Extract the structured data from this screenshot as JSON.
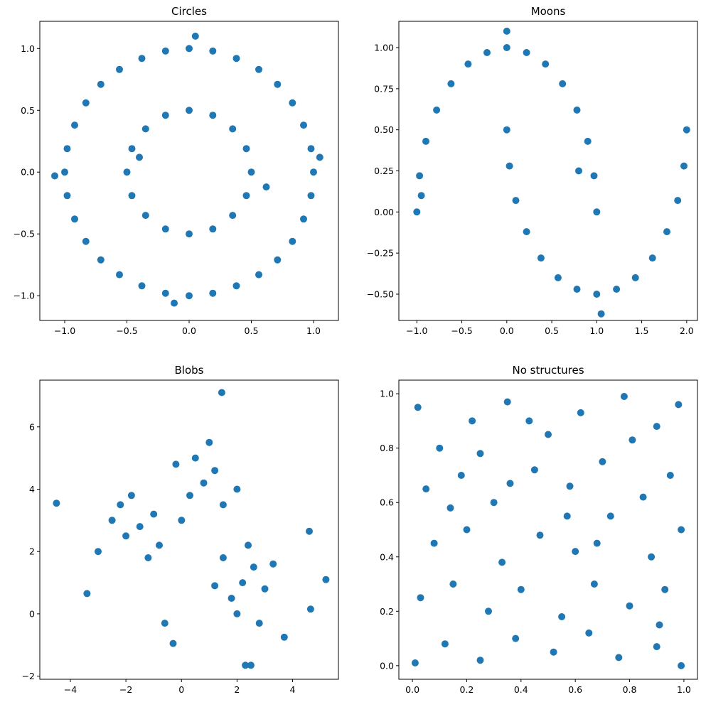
{
  "colors": {
    "marker": "#1f77b4",
    "background": "#ffffff",
    "frame": "#000000"
  },
  "chart_data": [
    {
      "type": "scatter",
      "title": "Circles",
      "xlabel": "",
      "ylabel": "",
      "xlim": [
        -1.2,
        1.2
      ],
      "ylim": [
        -1.2,
        1.22
      ],
      "xticks": [
        -1.0,
        -0.5,
        0.0,
        0.5,
        1.0
      ],
      "xticklabels": [
        "−1.0",
        "−0.5",
        "0.0",
        "0.5",
        "1.0"
      ],
      "yticks": [
        -1.0,
        -0.5,
        0.0,
        0.5,
        1.0
      ],
      "yticklabels": [
        "−1.0",
        "−0.5",
        "0.0",
        "0.5",
        "1.0"
      ],
      "grid": false,
      "points": [
        [
          1.0,
          0.0
        ],
        [
          0.98,
          0.19
        ],
        [
          0.92,
          0.38
        ],
        [
          0.83,
          0.56
        ],
        [
          0.71,
          0.71
        ],
        [
          0.56,
          0.83
        ],
        [
          0.38,
          0.92
        ],
        [
          0.19,
          0.98
        ],
        [
          0.0,
          1.0
        ],
        [
          -0.19,
          0.98
        ],
        [
          -0.38,
          0.92
        ],
        [
          -0.56,
          0.83
        ],
        [
          -0.71,
          0.71
        ],
        [
          -0.83,
          0.56
        ],
        [
          -0.92,
          0.38
        ],
        [
          -0.98,
          0.19
        ],
        [
          -1.0,
          0.0
        ],
        [
          -0.98,
          -0.19
        ],
        [
          -0.92,
          -0.38
        ],
        [
          -0.83,
          -0.56
        ],
        [
          -0.71,
          -0.71
        ],
        [
          -0.56,
          -0.83
        ],
        [
          -0.38,
          -0.92
        ],
        [
          -0.19,
          -0.98
        ],
        [
          0.0,
          -1.0
        ],
        [
          0.19,
          -0.98
        ],
        [
          0.38,
          -0.92
        ],
        [
          0.56,
          -0.83
        ],
        [
          0.71,
          -0.71
        ],
        [
          0.83,
          -0.56
        ],
        [
          0.92,
          -0.38
        ],
        [
          0.98,
          -0.19
        ],
        [
          0.5,
          0.0
        ],
        [
          0.46,
          0.19
        ],
        [
          0.35,
          0.35
        ],
        [
          0.19,
          0.46
        ],
        [
          0.0,
          0.5
        ],
        [
          -0.19,
          0.46
        ],
        [
          -0.35,
          0.35
        ],
        [
          -0.46,
          0.19
        ],
        [
          -0.5,
          0.0
        ],
        [
          -0.46,
          -0.19
        ],
        [
          -0.35,
          -0.35
        ],
        [
          -0.19,
          -0.46
        ],
        [
          0.0,
          -0.5
        ],
        [
          0.19,
          -0.46
        ],
        [
          0.35,
          -0.35
        ],
        [
          0.46,
          -0.19
        ],
        [
          1.05,
          0.12
        ],
        [
          -1.08,
          -0.03
        ],
        [
          0.05,
          1.1
        ],
        [
          -0.12,
          -1.06
        ],
        [
          0.62,
          -0.12
        ],
        [
          -0.4,
          0.12
        ]
      ]
    },
    {
      "type": "scatter",
      "title": "Moons",
      "xlabel": "",
      "ylabel": "",
      "xlim": [
        -1.2,
        2.12
      ],
      "ylim": [
        -0.66,
        1.16
      ],
      "xticks": [
        -1.0,
        -0.5,
        0.0,
        0.5,
        1.0,
        1.5,
        2.0
      ],
      "xticklabels": [
        "−1.0",
        "−0.5",
        "0.0",
        "0.5",
        "1.0",
        "1.5",
        "2.0"
      ],
      "yticks": [
        -0.5,
        -0.25,
        0.0,
        0.25,
        0.5,
        0.75,
        1.0
      ],
      "yticklabels": [
        "−0.50",
        "−0.25",
        "0.00",
        "0.25",
        "0.50",
        "0.75",
        "1.00"
      ],
      "grid": false,
      "points": [
        [
          -1.0,
          0.0
        ],
        [
          -0.97,
          0.22
        ],
        [
          -0.9,
          0.43
        ],
        [
          -0.78,
          0.62
        ],
        [
          -0.62,
          0.78
        ],
        [
          -0.43,
          0.9
        ],
        [
          -0.22,
          0.97
        ],
        [
          0.0,
          1.0
        ],
        [
          0.22,
          0.97
        ],
        [
          0.43,
          0.9
        ],
        [
          0.62,
          0.78
        ],
        [
          0.78,
          0.62
        ],
        [
          0.9,
          0.43
        ],
        [
          0.97,
          0.22
        ],
        [
          1.0,
          0.0
        ],
        [
          0.0,
          0.5
        ],
        [
          0.03,
          0.28
        ],
        [
          0.1,
          0.07
        ],
        [
          0.22,
          -0.12
        ],
        [
          0.38,
          -0.28
        ],
        [
          0.57,
          -0.4
        ],
        [
          0.78,
          -0.47
        ],
        [
          1.0,
          -0.5
        ],
        [
          1.22,
          -0.47
        ],
        [
          1.43,
          -0.4
        ],
        [
          1.62,
          -0.28
        ],
        [
          1.78,
          -0.12
        ],
        [
          1.9,
          0.07
        ],
        [
          1.97,
          0.28
        ],
        [
          2.0,
          0.5
        ],
        [
          -0.95,
          0.1
        ],
        [
          0.0,
          1.1
        ],
        [
          1.05,
          -0.62
        ],
        [
          0.8,
          0.25
        ]
      ]
    },
    {
      "type": "scatter",
      "title": "Blobs",
      "xlabel": "",
      "ylabel": "",
      "xlim": [
        -5.1,
        5.65
      ],
      "ylim": [
        -2.1,
        7.5
      ],
      "xticks": [
        -4,
        -2,
        0,
        2,
        4
      ],
      "xticklabels": [
        "−4",
        "−2",
        "0",
        "2",
        "4"
      ],
      "yticks": [
        -2,
        0,
        2,
        4,
        6
      ],
      "yticklabels": [
        "−2",
        "0",
        "2",
        "4",
        "6"
      ],
      "grid": false,
      "points": [
        [
          -1.5,
          2.8
        ],
        [
          -2.0,
          2.5
        ],
        [
          -1.0,
          3.2
        ],
        [
          -2.5,
          3.0
        ],
        [
          -1.8,
          3.8
        ],
        [
          -0.8,
          2.2
        ],
        [
          -3.0,
          2.0
        ],
        [
          -1.2,
          1.8
        ],
        [
          -2.2,
          3.5
        ],
        [
          0.8,
          4.2
        ],
        [
          1.2,
          4.6
        ],
        [
          0.3,
          3.8
        ],
        [
          1.5,
          3.5
        ],
        [
          0.5,
          5.0
        ],
        [
          1.0,
          5.5
        ],
        [
          -0.2,
          4.8
        ],
        [
          2.0,
          4.0
        ],
        [
          0.0,
          3.0
        ],
        [
          2.2,
          1.0
        ],
        [
          1.8,
          0.5
        ],
        [
          2.6,
          1.5
        ],
        [
          2.0,
          0.0
        ],
        [
          3.0,
          0.8
        ],
        [
          1.5,
          1.8
        ],
        [
          2.8,
          -0.3
        ],
        [
          1.2,
          0.9
        ],
        [
          3.3,
          1.6
        ],
        [
          2.4,
          2.2
        ],
        [
          -4.5,
          3.55
        ],
        [
          5.2,
          1.1
        ],
        [
          1.45,
          7.1
        ],
        [
          2.3,
          -1.65
        ],
        [
          2.5,
          -1.65
        ],
        [
          -0.6,
          -0.3
        ],
        [
          -0.3,
          -0.95
        ],
        [
          4.6,
          2.65
        ],
        [
          4.65,
          0.15
        ],
        [
          -3.4,
          0.65
        ],
        [
          3.7,
          -0.75
        ]
      ]
    },
    {
      "type": "scatter",
      "title": "No structures",
      "xlabel": "",
      "ylabel": "",
      "xlim": [
        -0.05,
        1.05
      ],
      "ylim": [
        -0.05,
        1.05
      ],
      "xticks": [
        0.0,
        0.2,
        0.4,
        0.6,
        0.8,
        1.0
      ],
      "xticklabels": [
        "0.0",
        "0.2",
        "0.4",
        "0.6",
        "0.8",
        "1.0"
      ],
      "yticks": [
        0.0,
        0.2,
        0.4,
        0.6,
        0.8,
        1.0
      ],
      "yticklabels": [
        "0.0",
        "0.2",
        "0.4",
        "0.6",
        "0.8",
        "1.0"
      ],
      "grid": false,
      "points": [
        [
          0.02,
          0.95
        ],
        [
          0.1,
          0.8
        ],
        [
          0.22,
          0.9
        ],
        [
          0.35,
          0.97
        ],
        [
          0.5,
          0.85
        ],
        [
          0.62,
          0.93
        ],
        [
          0.78,
          0.99
        ],
        [
          0.9,
          0.88
        ],
        [
          0.98,
          0.96
        ],
        [
          0.05,
          0.65
        ],
        [
          0.18,
          0.7
        ],
        [
          0.3,
          0.6
        ],
        [
          0.45,
          0.72
        ],
        [
          0.58,
          0.66
        ],
        [
          0.7,
          0.75
        ],
        [
          0.85,
          0.62
        ],
        [
          0.95,
          0.7
        ],
        [
          0.08,
          0.45
        ],
        [
          0.2,
          0.5
        ],
        [
          0.33,
          0.38
        ],
        [
          0.47,
          0.48
        ],
        [
          0.6,
          0.42
        ],
        [
          0.73,
          0.55
        ],
        [
          0.88,
          0.4
        ],
        [
          0.99,
          0.5
        ],
        [
          0.03,
          0.25
        ],
        [
          0.15,
          0.3
        ],
        [
          0.28,
          0.2
        ],
        [
          0.4,
          0.28
        ],
        [
          0.55,
          0.18
        ],
        [
          0.67,
          0.3
        ],
        [
          0.8,
          0.22
        ],
        [
          0.93,
          0.28
        ],
        [
          0.01,
          0.01
        ],
        [
          0.12,
          0.08
        ],
        [
          0.25,
          0.02
        ],
        [
          0.38,
          0.1
        ],
        [
          0.52,
          0.05
        ],
        [
          0.65,
          0.12
        ],
        [
          0.76,
          0.03
        ],
        [
          0.9,
          0.07
        ],
        [
          0.99,
          0.0
        ],
        [
          0.43,
          0.9
        ],
        [
          0.57,
          0.55
        ],
        [
          0.25,
          0.78
        ],
        [
          0.81,
          0.83
        ],
        [
          0.14,
          0.58
        ],
        [
          0.68,
          0.45
        ],
        [
          0.36,
          0.67
        ],
        [
          0.91,
          0.15
        ]
      ]
    }
  ]
}
